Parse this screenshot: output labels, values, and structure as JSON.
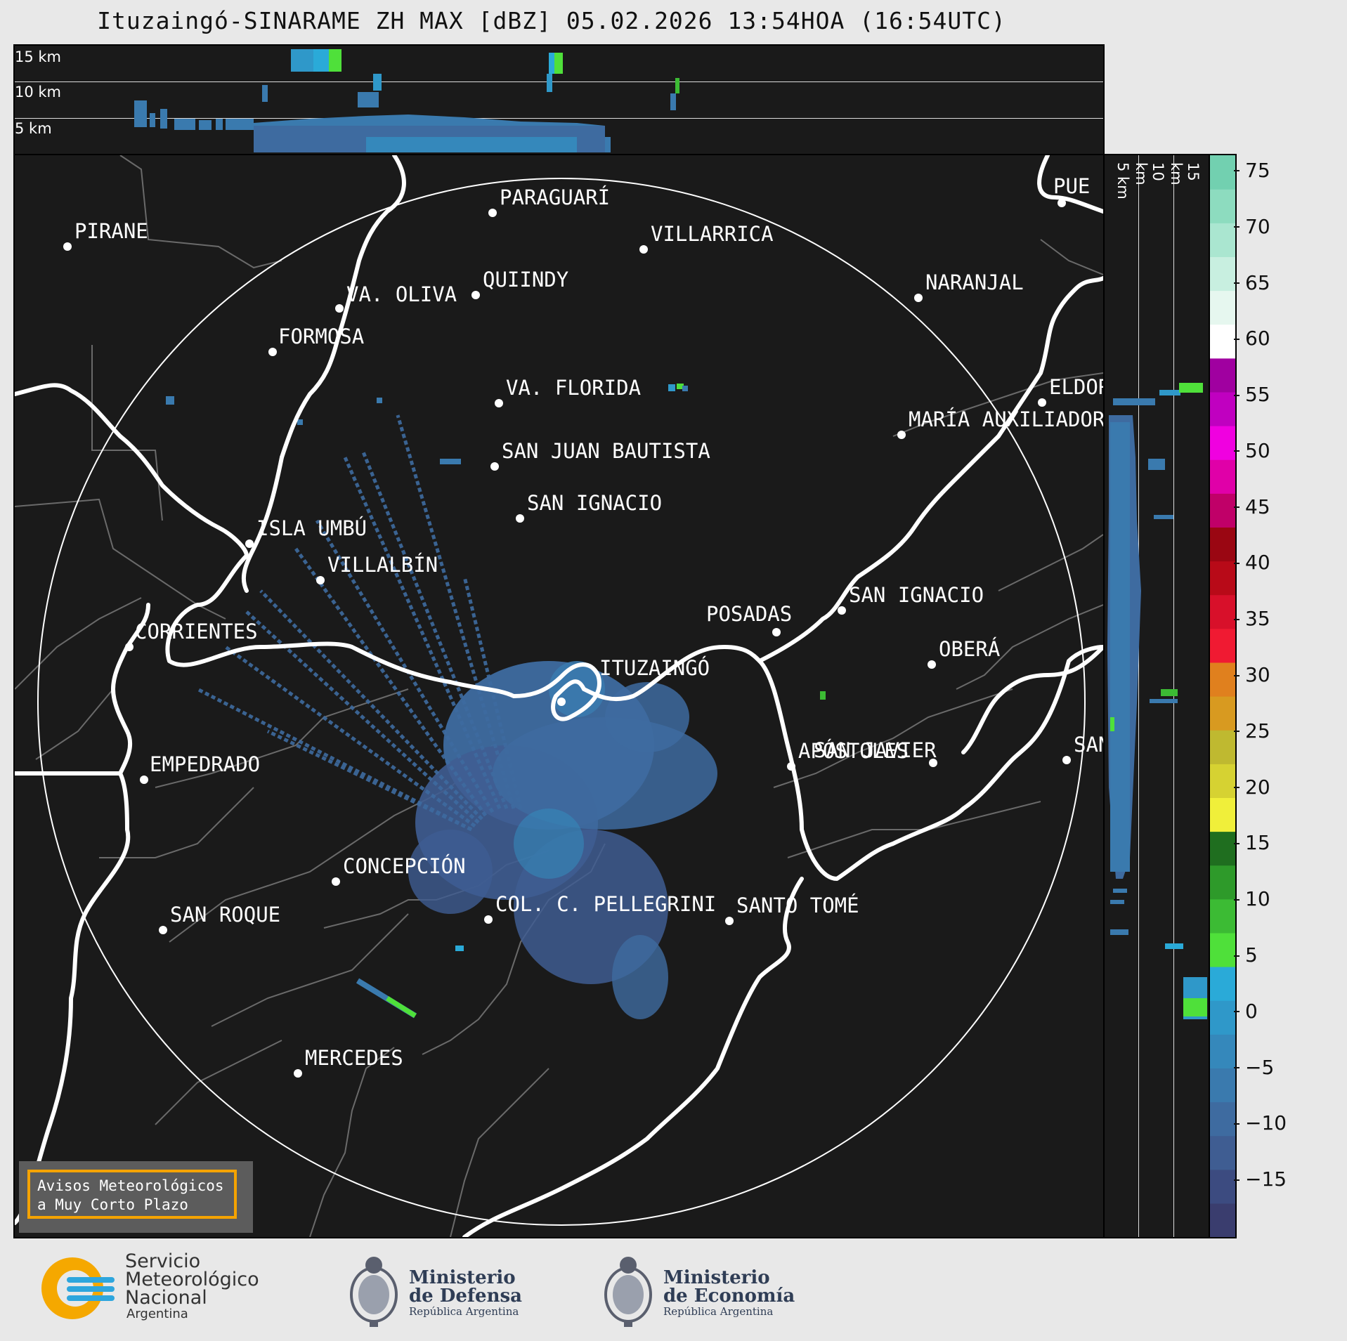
{
  "title": "Ituzaingó-SINARAME ZH MAX [dBZ] 05.02.2026 13:54HOA (16:54UTC)",
  "top_panel": {
    "altitudes": [
      "15 km",
      "10 km",
      "5 km"
    ]
  },
  "side_panel": {
    "altitudes": [
      "5 km",
      "10 km",
      "15 km"
    ]
  },
  "map": {
    "radar_site": "ITUZAINGÓ",
    "cities": [
      {
        "name": "PARAGUARÍ"
      },
      {
        "name": "PIRANE"
      },
      {
        "name": "VILLARRICA"
      },
      {
        "name": "QUIINDY"
      },
      {
        "name": "VA. OLIVA"
      },
      {
        "name": "NARANJAL"
      },
      {
        "name": "FORMOSA"
      },
      {
        "name": "VA. FLORIDA"
      },
      {
        "name": "ELDOR"
      },
      {
        "name": "MARÍA AUXILIADOR"
      },
      {
        "name": "SAN JUAN BAUTISTA"
      },
      {
        "name": "SAN IGNACIO"
      },
      {
        "name": "ISLA UMBÚ"
      },
      {
        "name": "VILLALBÍN"
      },
      {
        "name": "SAN IGNACIO"
      },
      {
        "name": "POSADAS"
      },
      {
        "name": "CORRIENTES"
      },
      {
        "name": "OBERÁ"
      },
      {
        "name": "EMPEDRADO"
      },
      {
        "name": "APÓSTOLES"
      },
      {
        "name": "SAN JAVIER"
      },
      {
        "name": "SAN"
      },
      {
        "name": "CONCEPCIÓN"
      },
      {
        "name": "COL. C. PELLEGRINI"
      },
      {
        "name": "SANTO TOMÉ"
      },
      {
        "name": "SAN ROQUE"
      },
      {
        "name": "MERCEDES"
      },
      {
        "name": "PUE"
      }
    ]
  },
  "colorbar": {
    "unit": "dBZ",
    "ticks": [
      "75",
      "70",
      "65",
      "60",
      "55",
      "50",
      "45",
      "40",
      "35",
      "30",
      "25",
      "20",
      "15",
      "10",
      "5",
      "0",
      "−5",
      "−10",
      "−15"
    ],
    "range": [
      -20,
      76.5
    ],
    "colors": [
      "#3a3d6e",
      "#3c4b80",
      "#3f5d92",
      "#3e6ba0",
      "#3a7aae",
      "#3588bb",
      "#2f98c9",
      "#2aaad8",
      "#4fe03a",
      "#3cbb34",
      "#2e9a2a",
      "#1f6e1f",
      "#f0ef3a",
      "#d6d232",
      "#bfb930",
      "#d89a20",
      "#e0801e",
      "#f01a32",
      "#d8102a",
      "#b80a18",
      "#9a0612",
      "#c00068",
      "#e000a8",
      "#f000e0",
      "#c000c0",
      "#a000a0",
      "#ffffff",
      "#e6f7ef",
      "#c8efe0",
      "#aae6d0",
      "#8ddcbf",
      "#72d0b0"
    ]
  },
  "avisos": {
    "line1": "Avisos Meteorológicos",
    "line2": "a Muy Corto Plazo"
  },
  "footer": {
    "smn": [
      "Servicio",
      "Meteorológico",
      "Nacional",
      "Argentina"
    ],
    "defensa": [
      "Ministerio",
      "de Defensa",
      "República Argentina"
    ],
    "economia": [
      "Ministerio",
      "de Economía",
      "República Argentina"
    ]
  }
}
